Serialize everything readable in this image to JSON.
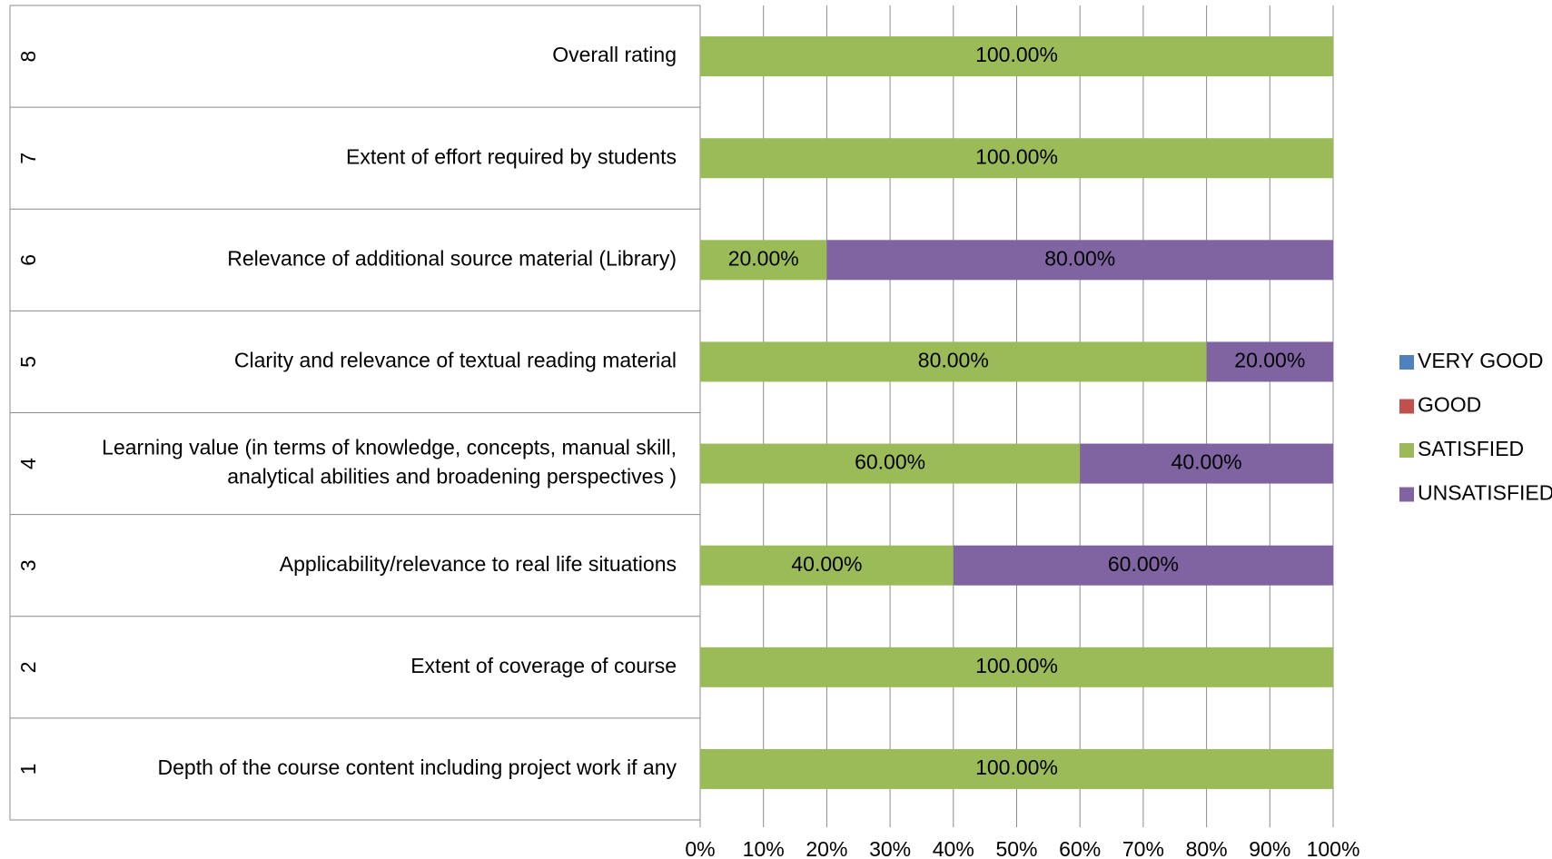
{
  "chart_data": {
    "type": "stacked_barh",
    "category_numbers": [
      "1",
      "2",
      "3",
      "4",
      "5",
      "6",
      "7",
      "8"
    ],
    "categories": [
      "Depth of the course content including project work if any",
      "Extent of coverage of course",
      "Applicability/relevance to real life situations",
      "Learning value (in terms of knowledge, concepts, manual skill,\nanalytical abilities and broadening perspectives )",
      "Clarity and relevance of textual reading material",
      "Relevance of additional source material (Library)",
      "Extent of effort required by students",
      "Overall rating"
    ],
    "series": [
      {
        "name": "VERY GOOD",
        "color": "#4f81bd",
        "values": [
          0,
          0,
          0,
          0,
          0,
          0,
          0,
          0
        ],
        "value_labels": [
          null,
          null,
          null,
          null,
          null,
          null,
          null,
          null
        ]
      },
      {
        "name": "GOOD",
        "color": "#c0504d",
        "values": [
          0,
          0,
          0,
          0,
          0,
          0,
          0,
          0
        ],
        "value_labels": [
          null,
          null,
          null,
          null,
          null,
          null,
          null,
          null
        ]
      },
      {
        "name": "SATISFIED",
        "color": "#9bbb59",
        "values": [
          100,
          100,
          40,
          60,
          80,
          20,
          100,
          100
        ],
        "value_labels": [
          "100.00%",
          "100.00%",
          "40.00%",
          "60.00%",
          "80.00%",
          "20.00%",
          "100.00%",
          "100.00%"
        ]
      },
      {
        "name": "UNSATISFIED",
        "color": "#8064a2",
        "values": [
          0,
          0,
          60,
          40,
          20,
          80,
          0,
          0
        ],
        "value_labels": [
          null,
          null,
          "60.00%",
          "40.00%",
          "20.00%",
          "80.00%",
          null,
          null
        ]
      }
    ],
    "xlim": [
      0,
      100
    ],
    "xticks": [
      {
        "value": 0,
        "label": "0%"
      },
      {
        "value": 10,
        "label": "10%"
      },
      {
        "value": 20,
        "label": "20%"
      },
      {
        "value": 30,
        "label": "30%"
      },
      {
        "value": 40,
        "label": "40%"
      },
      {
        "value": 50,
        "label": "50%"
      },
      {
        "value": 60,
        "label": "60%"
      },
      {
        "value": 70,
        "label": "70%"
      },
      {
        "value": 80,
        "label": "80%"
      },
      {
        "value": 90,
        "label": "90%"
      },
      {
        "value": 100,
        "label": "100%"
      }
    ],
    "grid": true,
    "legend": "right"
  }
}
